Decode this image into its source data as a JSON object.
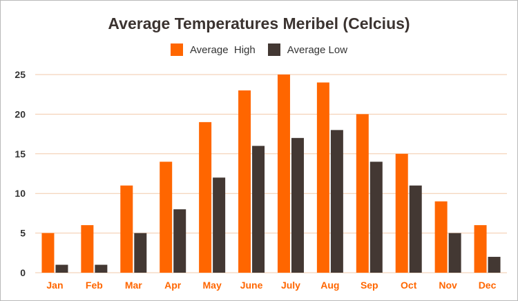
{
  "chart_data": {
    "type": "bar",
    "title": "Average Temperatures Meribel (Celcius)",
    "xlabel": "",
    "ylabel": "",
    "categories": [
      "Jan",
      "Feb",
      "Mar",
      "Apr",
      "May",
      "June",
      "July",
      "Aug",
      "Sep",
      "Oct",
      "Nov",
      "Dec"
    ],
    "series": [
      {
        "name": "Average  High",
        "color": "#ff6600",
        "values": [
          5,
          6,
          11,
          14,
          19,
          23,
          25,
          24,
          20,
          15,
          9,
          6
        ]
      },
      {
        "name": "Average Low",
        "color": "#433833",
        "values": [
          1,
          1,
          5,
          8,
          12,
          16,
          17,
          18,
          14,
          11,
          5,
          2
        ]
      }
    ],
    "ylim": [
      0,
      25
    ],
    "yticks": [
      0,
      5,
      10,
      15,
      20,
      25
    ],
    "grid": true,
    "legend_position": "top-center",
    "colors": {
      "gridline": "#f2c9a8",
      "tick_label": "#333333",
      "category_label": "#ff6600"
    }
  }
}
